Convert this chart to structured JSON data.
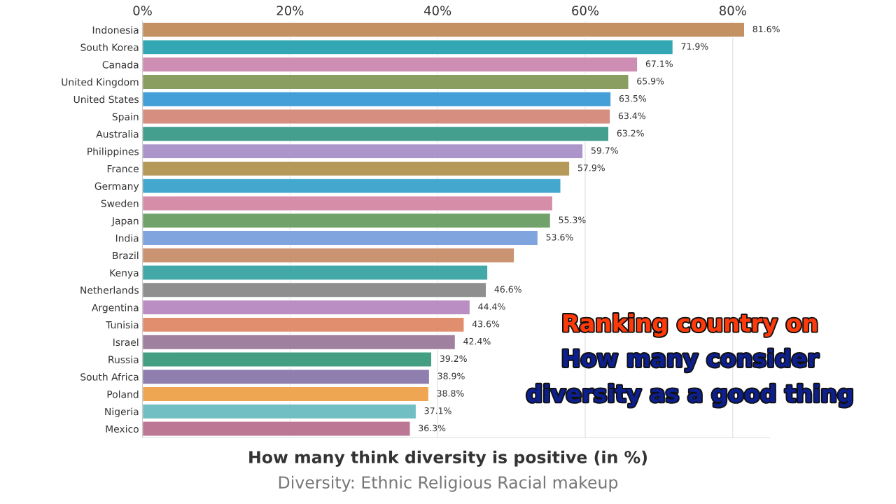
{
  "chart_data": {
    "type": "bar",
    "orientation": "horizontal",
    "categories": [
      "Indonesia",
      "South Korea",
      "Canada",
      "United Kingdom",
      "United States",
      "Spain",
      "Australia",
      "Philippines",
      "France",
      "Germany",
      "Sweden",
      "Japan",
      "India",
      "Brazil",
      "Kenya",
      "Netherlands",
      "Argentina",
      "Tunisia",
      "Israel",
      "Russia",
      "South Africa",
      "Poland",
      "Nigeria",
      "Mexico"
    ],
    "values": [
      81.6,
      71.9,
      67.1,
      65.9,
      63.5,
      63.4,
      63.2,
      59.7,
      57.9,
      56.7,
      55.6,
      55.3,
      53.6,
      50.4,
      46.8,
      46.6,
      44.4,
      43.6,
      42.4,
      39.2,
      38.9,
      38.8,
      37.1,
      36.3
    ],
    "value_labels": [
      "81.6%",
      "71.9%",
      "67.1%",
      "65.9%",
      "63.5%",
      "63.4%",
      "63.2%",
      "59.7%",
      "57.9%",
      null,
      null,
      "55.3%",
      "53.6%",
      null,
      null,
      "46.6%",
      "44.4%",
      "43.6%",
      "42.4%",
      "39.2%",
      "38.9%",
      "38.8%",
      "37.1%",
      "36.3%"
    ],
    "colors": [
      "#c08c5a",
      "#2aa3b0",
      "#cc88b0",
      "#84995a",
      "#3a9ad6",
      "#d4887a",
      "#3a9a88",
      "#a890c8",
      "#b09450",
      "#3aa4cc",
      "#d488a4",
      "#6a9e62",
      "#7aa0dc",
      "#c88e6a",
      "#38a4a4",
      "#8a8a8a",
      "#b888c0",
      "#e08868",
      "#9a7a9a",
      "#3a9a7c",
      "#8a78aa",
      "#eea24a",
      "#6abcc0",
      "#b8708e"
    ],
    "xlim": [
      0,
      85
    ],
    "xticks": [
      {
        "value": 0,
        "label": "0%"
      },
      {
        "value": 20,
        "label": "20%"
      },
      {
        "value": 40,
        "label": "40%"
      },
      {
        "value": 60,
        "label": "60%"
      },
      {
        "value": 80,
        "label": "80%"
      }
    ],
    "grid": "x",
    "xlabel": "How many think diversity is positive (in %)",
    "annotations": [
      "Diversity: Ethnic Religious Racial makeup",
      "Ranking country on",
      "How many consider",
      "diversity as a good thing"
    ]
  }
}
